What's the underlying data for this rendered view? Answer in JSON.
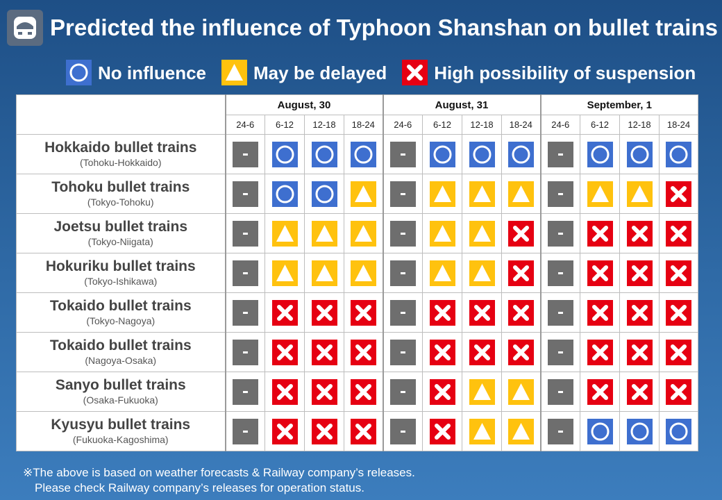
{
  "header": {
    "title": "Predicted the influence of Typhoon Shanshan on bullet trains",
    "logo_icon": "bullet-train-icon"
  },
  "legend": [
    {
      "symbol": "circle",
      "label": "No influence",
      "color": "#3e6fcf"
    },
    {
      "symbol": "triangle",
      "label": "May be delayed",
      "color": "#ffc20e"
    },
    {
      "symbol": "cross",
      "label": "High possibility of suspension",
      "color": "#e60012"
    }
  ],
  "days": [
    "August, 30",
    "August, 31",
    "September, 1"
  ],
  "time_slots": [
    "24-6",
    "6-12",
    "12-18",
    "18-24"
  ],
  "lines": [
    {
      "name": "Hokkaido bullet trains",
      "route": "(Tohoku-Hokkaido)",
      "status": [
        "-",
        "O",
        "O",
        "O",
        "-",
        "O",
        "O",
        "O",
        "-",
        "O",
        "O",
        "O"
      ]
    },
    {
      "name": "Tohoku bullet trains",
      "route": "(Tokyo-Tohoku)",
      "status": [
        "-",
        "O",
        "O",
        "T",
        "-",
        "T",
        "T",
        "T",
        "-",
        "T",
        "T",
        "X"
      ]
    },
    {
      "name": "Joetsu bullet trains",
      "route": "(Tokyo-Niigata)",
      "status": [
        "-",
        "T",
        "T",
        "T",
        "-",
        "T",
        "T",
        "X",
        "-",
        "X",
        "X",
        "X"
      ]
    },
    {
      "name": "Hokuriku bullet trains",
      "route": "(Tokyo-Ishikawa)",
      "status": [
        "-",
        "T",
        "T",
        "T",
        "-",
        "T",
        "T",
        "X",
        "-",
        "X",
        "X",
        "X"
      ]
    },
    {
      "name": "Tokaido bullet trains",
      "route": "(Tokyo-Nagoya)",
      "status": [
        "-",
        "X",
        "X",
        "X",
        "-",
        "X",
        "X",
        "X",
        "-",
        "X",
        "X",
        "X"
      ]
    },
    {
      "name": "Tokaido bullet trains",
      "route": "(Nagoya-Osaka)",
      "status": [
        "-",
        "X",
        "X",
        "X",
        "-",
        "X",
        "X",
        "X",
        "-",
        "X",
        "X",
        "X"
      ]
    },
    {
      "name": "Sanyo bullet trains",
      "route": "(Osaka-Fukuoka)",
      "status": [
        "-",
        "X",
        "X",
        "X",
        "-",
        "X",
        "T",
        "T",
        "-",
        "X",
        "X",
        "X"
      ]
    },
    {
      "name": "Kyusyu bullet trains",
      "route": "(Fukuoka-Kagoshima)",
      "status": [
        "-",
        "X",
        "X",
        "X",
        "-",
        "X",
        "T",
        "T",
        "-",
        "O",
        "O",
        "O"
      ]
    }
  ],
  "colors": {
    "circle": "#3e6fcf",
    "triangle": "#ffc20e",
    "cross": "#e60012",
    "none": "#6e6e6e"
  },
  "footnote": {
    "line1": "※The above is based on weather forecasts & Railway company’s releases.",
    "line2": "Please check Railway company’s releases for operation status."
  }
}
